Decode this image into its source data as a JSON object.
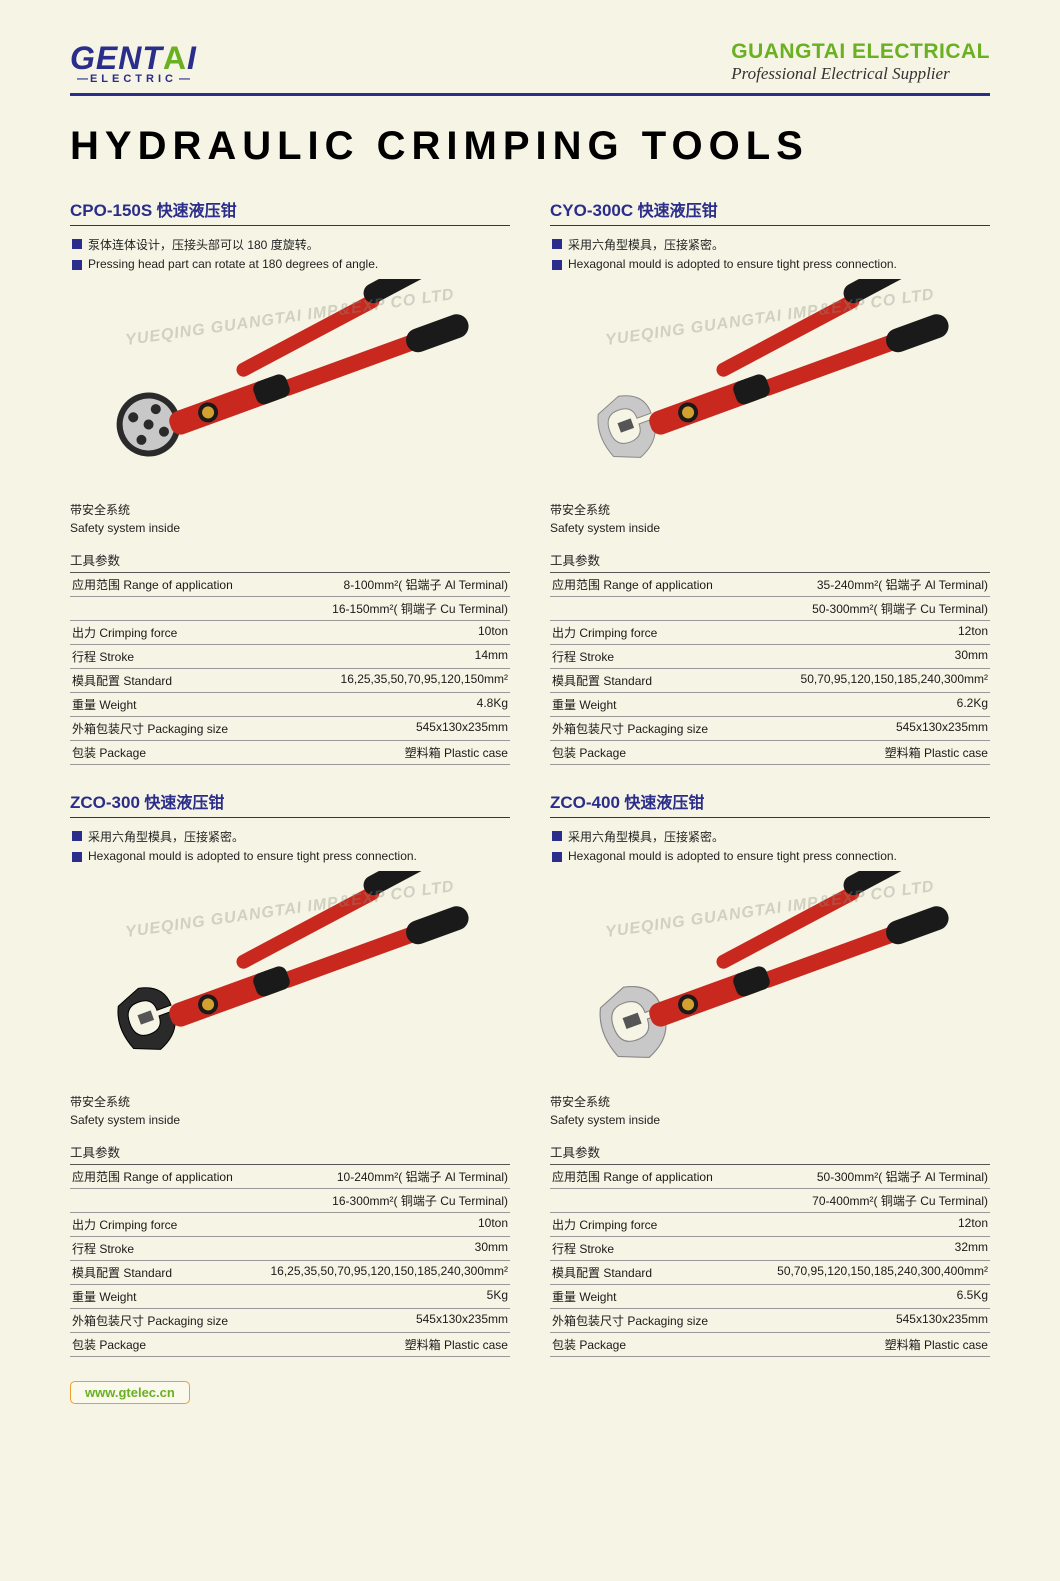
{
  "header": {
    "logo_main": "GENTAI",
    "logo_sub": "ELECTRIC",
    "company_name": "GUANGTAI ELECTRICAL",
    "company_tag": "Professional Electrical Supplier"
  },
  "title": "HYDRAULIC CRIMPING TOOLS",
  "watermark": "YUEQING GUANGTAI IMP&EXP CO LTD",
  "safety_cn": "带安全系统",
  "safety_en": "Safety system inside",
  "spec_header": "工具参数",
  "spec_labels": {
    "range": "应用范围 Range of application",
    "force": "出力 Crimping force",
    "stroke": "行程 Stroke",
    "standard": "模具配置 Standard",
    "weight": "重量 Weight",
    "packsize": "外箱包装尺寸 Packaging size",
    "package": "包装 Package"
  },
  "products": [
    {
      "model": "CPO-150S",
      "name_cn": "快速液压钳",
      "bullets": [
        "泵体连体设计，压接头部可以 180 度旋转。",
        "Pressing head part can rotate at 180 degrees of angle."
      ],
      "head_type": "round",
      "specs": {
        "range": [
          "8-100mm²( 铝端子 Al Terminal)",
          "16-150mm²( 铜端子 Cu Terminal)"
        ],
        "force": "10ton",
        "stroke": "14mm",
        "standard": "16,25,35,50,70,95,120,150mm²",
        "weight": "4.8Kg",
        "packsize": "545x130x235mm",
        "package": "塑料箱 Plastic case"
      }
    },
    {
      "model": "CYO-300C",
      "name_cn": "快速液压钳",
      "bullets": [
        "采用六角型模具，压接紧密。",
        "Hexagonal mould is adopted to ensure tight press connection."
      ],
      "head_type": "c-silver",
      "specs": {
        "range": [
          "35-240mm²( 铝端子 Al Terminal)",
          "50-300mm²( 铜端子 Cu Terminal)"
        ],
        "force": "12ton",
        "stroke": "30mm",
        "standard": "50,70,95,120,150,185,240,300mm²",
        "weight": "6.2Kg",
        "packsize": "545x130x235mm",
        "package": "塑料箱 Plastic case"
      }
    },
    {
      "model": "ZCO-300",
      "name_cn": "快速液压钳",
      "bullets": [
        "采用六角型模具，压接紧密。",
        "Hexagonal mould is adopted to ensure tight press connection."
      ],
      "head_type": "c-black",
      "specs": {
        "range": [
          "10-240mm²( 铝端子 Al Terminal)",
          "16-300mm²( 铜端子 Cu Terminal)"
        ],
        "force": "10ton",
        "stroke": "30mm",
        "standard": "16,25,35,50,70,95,120,150,185,240,300mm²",
        "weight": "5Kg",
        "packsize": "545x130x235mm",
        "package": "塑料箱 Plastic case"
      }
    },
    {
      "model": "ZCO-400",
      "name_cn": "快速液压钳",
      "bullets": [
        "采用六角型模具，压接紧密。",
        "Hexagonal mould is adopted to ensure tight press connection."
      ],
      "head_type": "c-silver-big",
      "specs": {
        "range": [
          "50-300mm²( 铝端子 Al Terminal)",
          "70-400mm²( 铜端子 Cu Terminal)"
        ],
        "force": "12ton",
        "stroke": "32mm",
        "standard": "50,70,95,120,150,185,240,300,400mm²",
        "weight": "6.5Kg",
        "packsize": "545x130x235mm",
        "package": "塑料箱 Plastic case"
      }
    }
  ],
  "footer": {
    "url": "www.gtelec.cn"
  },
  "colors": {
    "bg": "#f6f4e4",
    "accent_blue": "#2a2d8a",
    "accent_green": "#6ab023",
    "tool_red": "#c8281e",
    "tool_black": "#1a1a1a",
    "tool_silver": "#c8c8c8"
  }
}
